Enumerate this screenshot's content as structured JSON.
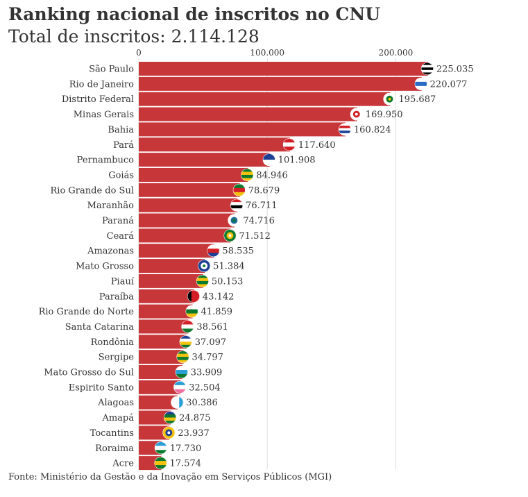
{
  "title": "Ranking nacional de inscritos no CNU",
  "subtitle": "Total de inscritos: 2.114.128",
  "source": "Fonte: Ministério da Gestão e da Inovação em Serviços Públicos (MGI)",
  "colors": {
    "bar": "#c7373a",
    "grid": "#dddddd",
    "text": "#333333"
  },
  "chart_data": {
    "type": "bar",
    "orientation": "horizontal",
    "title": "Ranking nacional de inscritos no CNU",
    "subtitle": "Total de inscritos: 2.114.128",
    "xlim": [
      0,
      230000
    ],
    "x_ticks": [
      {
        "value": 0,
        "label": "0"
      },
      {
        "value": 100000,
        "label": "100.000"
      },
      {
        "value": 200000,
        "label": "200.000"
      }
    ],
    "grid": true,
    "categories": [
      "São Paulo",
      "Rio de Janeiro",
      "Distrito Federal",
      "Minas Gerais",
      "Bahia",
      "Pará",
      "Pernambuco",
      "Goiás",
      "Rio Grande do Sul",
      "Maranhão",
      "Paraná",
      "Ceará",
      "Amazonas",
      "Mato Grosso",
      "Piauí",
      "Paraíba",
      "Rio Grande do Norte",
      "Santa Catarina",
      "Rondônia",
      "Sergipe",
      "Mato Grosso do Sul",
      "Espirito Santo",
      "Alagoas",
      "Amapá",
      "Tocantins",
      "Roraima",
      "Acre"
    ],
    "values": [
      225035,
      220077,
      195687,
      169950,
      160824,
      117640,
      101908,
      84946,
      78679,
      76711,
      74716,
      71512,
      58535,
      51384,
      50153,
      43142,
      41859,
      38561,
      37097,
      34797,
      33909,
      32504,
      30386,
      24875,
      23937,
      17730,
      17574
    ],
    "value_labels": [
      "225.035",
      "220.077",
      "195.687",
      "169.950",
      "160.824",
      "117.640",
      "101.908",
      "84.946",
      "78.679",
      "76.711",
      "74.716",
      "71.512",
      "58.535",
      "51.384",
      "50.153",
      "43.142",
      "41.859",
      "38.561",
      "37.097",
      "34.797",
      "33.909",
      "32.504",
      "30.386",
      "24.875",
      "23.937",
      "17.730",
      "17.574"
    ],
    "flags": [
      {
        "type": "h",
        "colors": [
          "#000000",
          "#ffffff",
          "#000000",
          "#ffffff",
          "#000000"
        ]
      },
      {
        "type": "h",
        "colors": [
          "#ffffff",
          "#2a6cc4",
          "#ffffff"
        ]
      },
      {
        "type": "emblem",
        "colors": [
          "#ffffff",
          "#0b7a2e",
          "#f4c20d"
        ]
      },
      {
        "type": "emblem",
        "colors": [
          "#ffffff",
          "#d32027",
          "#ffffff"
        ]
      },
      {
        "type": "h",
        "colors": [
          "#ffffff",
          "#d32027",
          "#ffffff",
          "#1d3f94",
          "#ffffff"
        ]
      },
      {
        "type": "h",
        "colors": [
          "#d32027",
          "#ffffff",
          "#d32027"
        ]
      },
      {
        "type": "h",
        "colors": [
          "#1d3f94",
          "#ffffff"
        ]
      },
      {
        "type": "h",
        "colors": [
          "#0b7a2e",
          "#f4c20d",
          "#0b7a2e",
          "#f4c20d"
        ]
      },
      {
        "type": "h",
        "colors": [
          "#0b7a2e",
          "#d32027",
          "#f4c20d"
        ]
      },
      {
        "type": "h",
        "colors": [
          "#d32027",
          "#ffffff",
          "#000000",
          "#ffffff"
        ]
      },
      {
        "type": "emblem",
        "colors": [
          "#ffffff",
          "#1d6a96",
          "#0b7a2e"
        ]
      },
      {
        "type": "emblem",
        "colors": [
          "#0b7a2e",
          "#f4c20d",
          "#ffffff"
        ]
      },
      {
        "type": "h",
        "colors": [
          "#ffffff",
          "#d32027",
          "#1d3f94"
        ]
      },
      {
        "type": "emblem",
        "colors": [
          "#1d3f94",
          "#ffffff",
          "#0b7a2e"
        ]
      },
      {
        "type": "h",
        "colors": [
          "#0b7a2e",
          "#f4c20d",
          "#0b7a2e",
          "#f4c20d"
        ]
      },
      {
        "type": "v",
        "colors": [
          "#000000",
          "#d32027",
          "#d32027"
        ]
      },
      {
        "type": "h",
        "colors": [
          "#ffffff",
          "#0b7a2e",
          "#f4c20d"
        ]
      },
      {
        "type": "h",
        "colors": [
          "#d32027",
          "#ffffff",
          "#0b7a2e"
        ]
      },
      {
        "type": "h",
        "colors": [
          "#1d3f94",
          "#ffffff",
          "#f4c20d",
          "#0b7a2e"
        ]
      },
      {
        "type": "h",
        "colors": [
          "#0b7a2e",
          "#f4c20d",
          "#0b7a2e",
          "#f4c20d"
        ]
      },
      {
        "type": "h",
        "colors": [
          "#ffffff",
          "#2a9fd6",
          "#0b7a2e"
        ]
      },
      {
        "type": "h",
        "colors": [
          "#2a9fd6",
          "#ffffff",
          "#f06fa0"
        ]
      },
      {
        "type": "v",
        "colors": [
          "#ffffff",
          "#ffffff",
          "#2a9fd6"
        ]
      },
      {
        "type": "h",
        "colors": [
          "#1d3f94",
          "#0b7a2e",
          "#f4c20d",
          "#0b7a2e"
        ]
      },
      {
        "type": "emblem",
        "colors": [
          "#f4c20d",
          "#1d3f94",
          "#ffffff"
        ]
      },
      {
        "type": "h",
        "colors": [
          "#2a9fd6",
          "#ffffff",
          "#0b7a2e"
        ]
      },
      {
        "type": "h",
        "colors": [
          "#0b7a2e",
          "#f4c20d",
          "#0b7a2e"
        ]
      }
    ]
  }
}
